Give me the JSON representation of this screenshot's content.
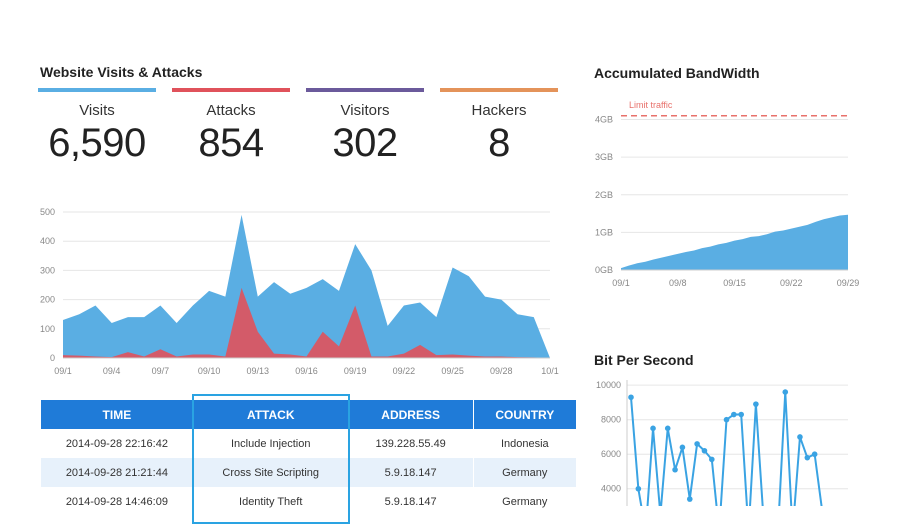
{
  "visits_panel": {
    "title": "Website Visits & Attacks",
    "stats": [
      {
        "label": "Visits",
        "value": "6,590",
        "color": "#5aaee3"
      },
      {
        "label": "Attacks",
        "value": "854",
        "color": "#e0525b"
      },
      {
        "label": "Visitors",
        "value": "302",
        "color": "#6b5a9b"
      },
      {
        "label": "Hackers",
        "value": "8",
        "color": "#e4935a"
      }
    ]
  },
  "bandwidth_panel": {
    "title": "Accumulated BandWidth"
  },
  "bps_panel": {
    "title": "Bit Per Second"
  },
  "table": {
    "headers": [
      "TIME",
      "ATTACK",
      "ADDRESS",
      "COUNTRY"
    ],
    "rows": [
      [
        "2014-09-28 22:16:42",
        "Include Injection",
        "139.228.55.49",
        "Indonesia"
      ],
      [
        "2014-09-28 21:21:44",
        "Cross Site Scripting",
        "5.9.18.147",
        "Germany"
      ],
      [
        "2014-09-28 14:46:09",
        "Identity Theft",
        "5.9.18.147",
        "Germany"
      ]
    ]
  },
  "chart_data": [
    {
      "type": "area",
      "categories": [
        "09/1",
        "09/2",
        "09/3",
        "09/4",
        "09/5",
        "09/6",
        "09/7",
        "09/8",
        "09/9",
        "09/10",
        "09/11",
        "09/12",
        "09/13",
        "09/14",
        "09/15",
        "09/16",
        "09/17",
        "09/18",
        "09/19",
        "09/20",
        "09/21",
        "09/22",
        "09/23",
        "09/24",
        "09/25",
        "09/26",
        "09/27",
        "09/28",
        "09/29",
        "09/30",
        "10/1"
      ],
      "xticks": [
        "09/1",
        "09/4",
        "09/7",
        "09/10",
        "09/13",
        "09/16",
        "09/19",
        "09/22",
        "09/25",
        "09/28",
        "10/1"
      ],
      "yticks": [
        0,
        100,
        200,
        300,
        400,
        500
      ],
      "ylim": [
        0,
        500
      ],
      "grid": true,
      "series": [
        {
          "values": [
            130,
            150,
            180,
            120,
            140,
            140,
            180,
            120,
            180,
            230,
            210,
            490,
            210,
            260,
            220,
            240,
            270,
            230,
            390,
            300,
            110,
            180,
            190,
            140,
            310,
            280,
            210,
            200,
            150,
            140,
            0
          ],
          "color": "#5aaee3"
        },
        {
          "values": [
            10,
            8,
            5,
            3,
            20,
            5,
            30,
            5,
            12,
            12,
            5,
            240,
            90,
            15,
            12,
            5,
            90,
            40,
            180,
            5,
            5,
            15,
            45,
            10,
            12,
            8,
            5,
            5,
            3,
            2,
            0
          ],
          "color": "#e0525b"
        }
      ]
    },
    {
      "type": "area",
      "categories": [
        "09/1",
        "09/8",
        "09/15",
        "09/22",
        "09/29"
      ],
      "x": [
        1,
        2,
        3,
        4,
        5,
        6,
        7,
        8,
        9,
        10,
        11,
        12,
        13,
        14,
        15,
        16,
        17,
        18,
        19,
        20,
        21,
        22,
        23,
        24,
        25,
        26,
        27,
        28,
        29
      ],
      "y": [
        0.05,
        0.12,
        0.18,
        0.22,
        0.28,
        0.33,
        0.38,
        0.43,
        0.48,
        0.52,
        0.58,
        0.62,
        0.68,
        0.72,
        0.78,
        0.82,
        0.88,
        0.9,
        0.95,
        1.02,
        1.05,
        1.1,
        1.15,
        1.2,
        1.28,
        1.35,
        1.4,
        1.45,
        1.47
      ],
      "yticks": [
        "0GB",
        "1GB",
        "2GB",
        "3GB",
        "4GB"
      ],
      "ylim": [
        0,
        4.2
      ],
      "limit": {
        "label": "Limit traffic",
        "value": 4.1,
        "color": "#e8716b"
      },
      "grid": true,
      "color": "#5aaee3"
    },
    {
      "type": "line",
      "yticks": [
        4000,
        6000,
        8000,
        10000
      ],
      "ylim": [
        3000,
        10300
      ],
      "values": [
        9300,
        4000,
        1500,
        7500,
        2500,
        7500,
        5100,
        6400,
        3400,
        6600,
        6200,
        5700,
        1500,
        8000,
        8300,
        8300,
        1500,
        8900,
        2500,
        1500,
        1500,
        9600,
        1500,
        7000,
        5800,
        6000,
        2800
      ],
      "grid": true,
      "color": "#3aa3e3"
    }
  ]
}
